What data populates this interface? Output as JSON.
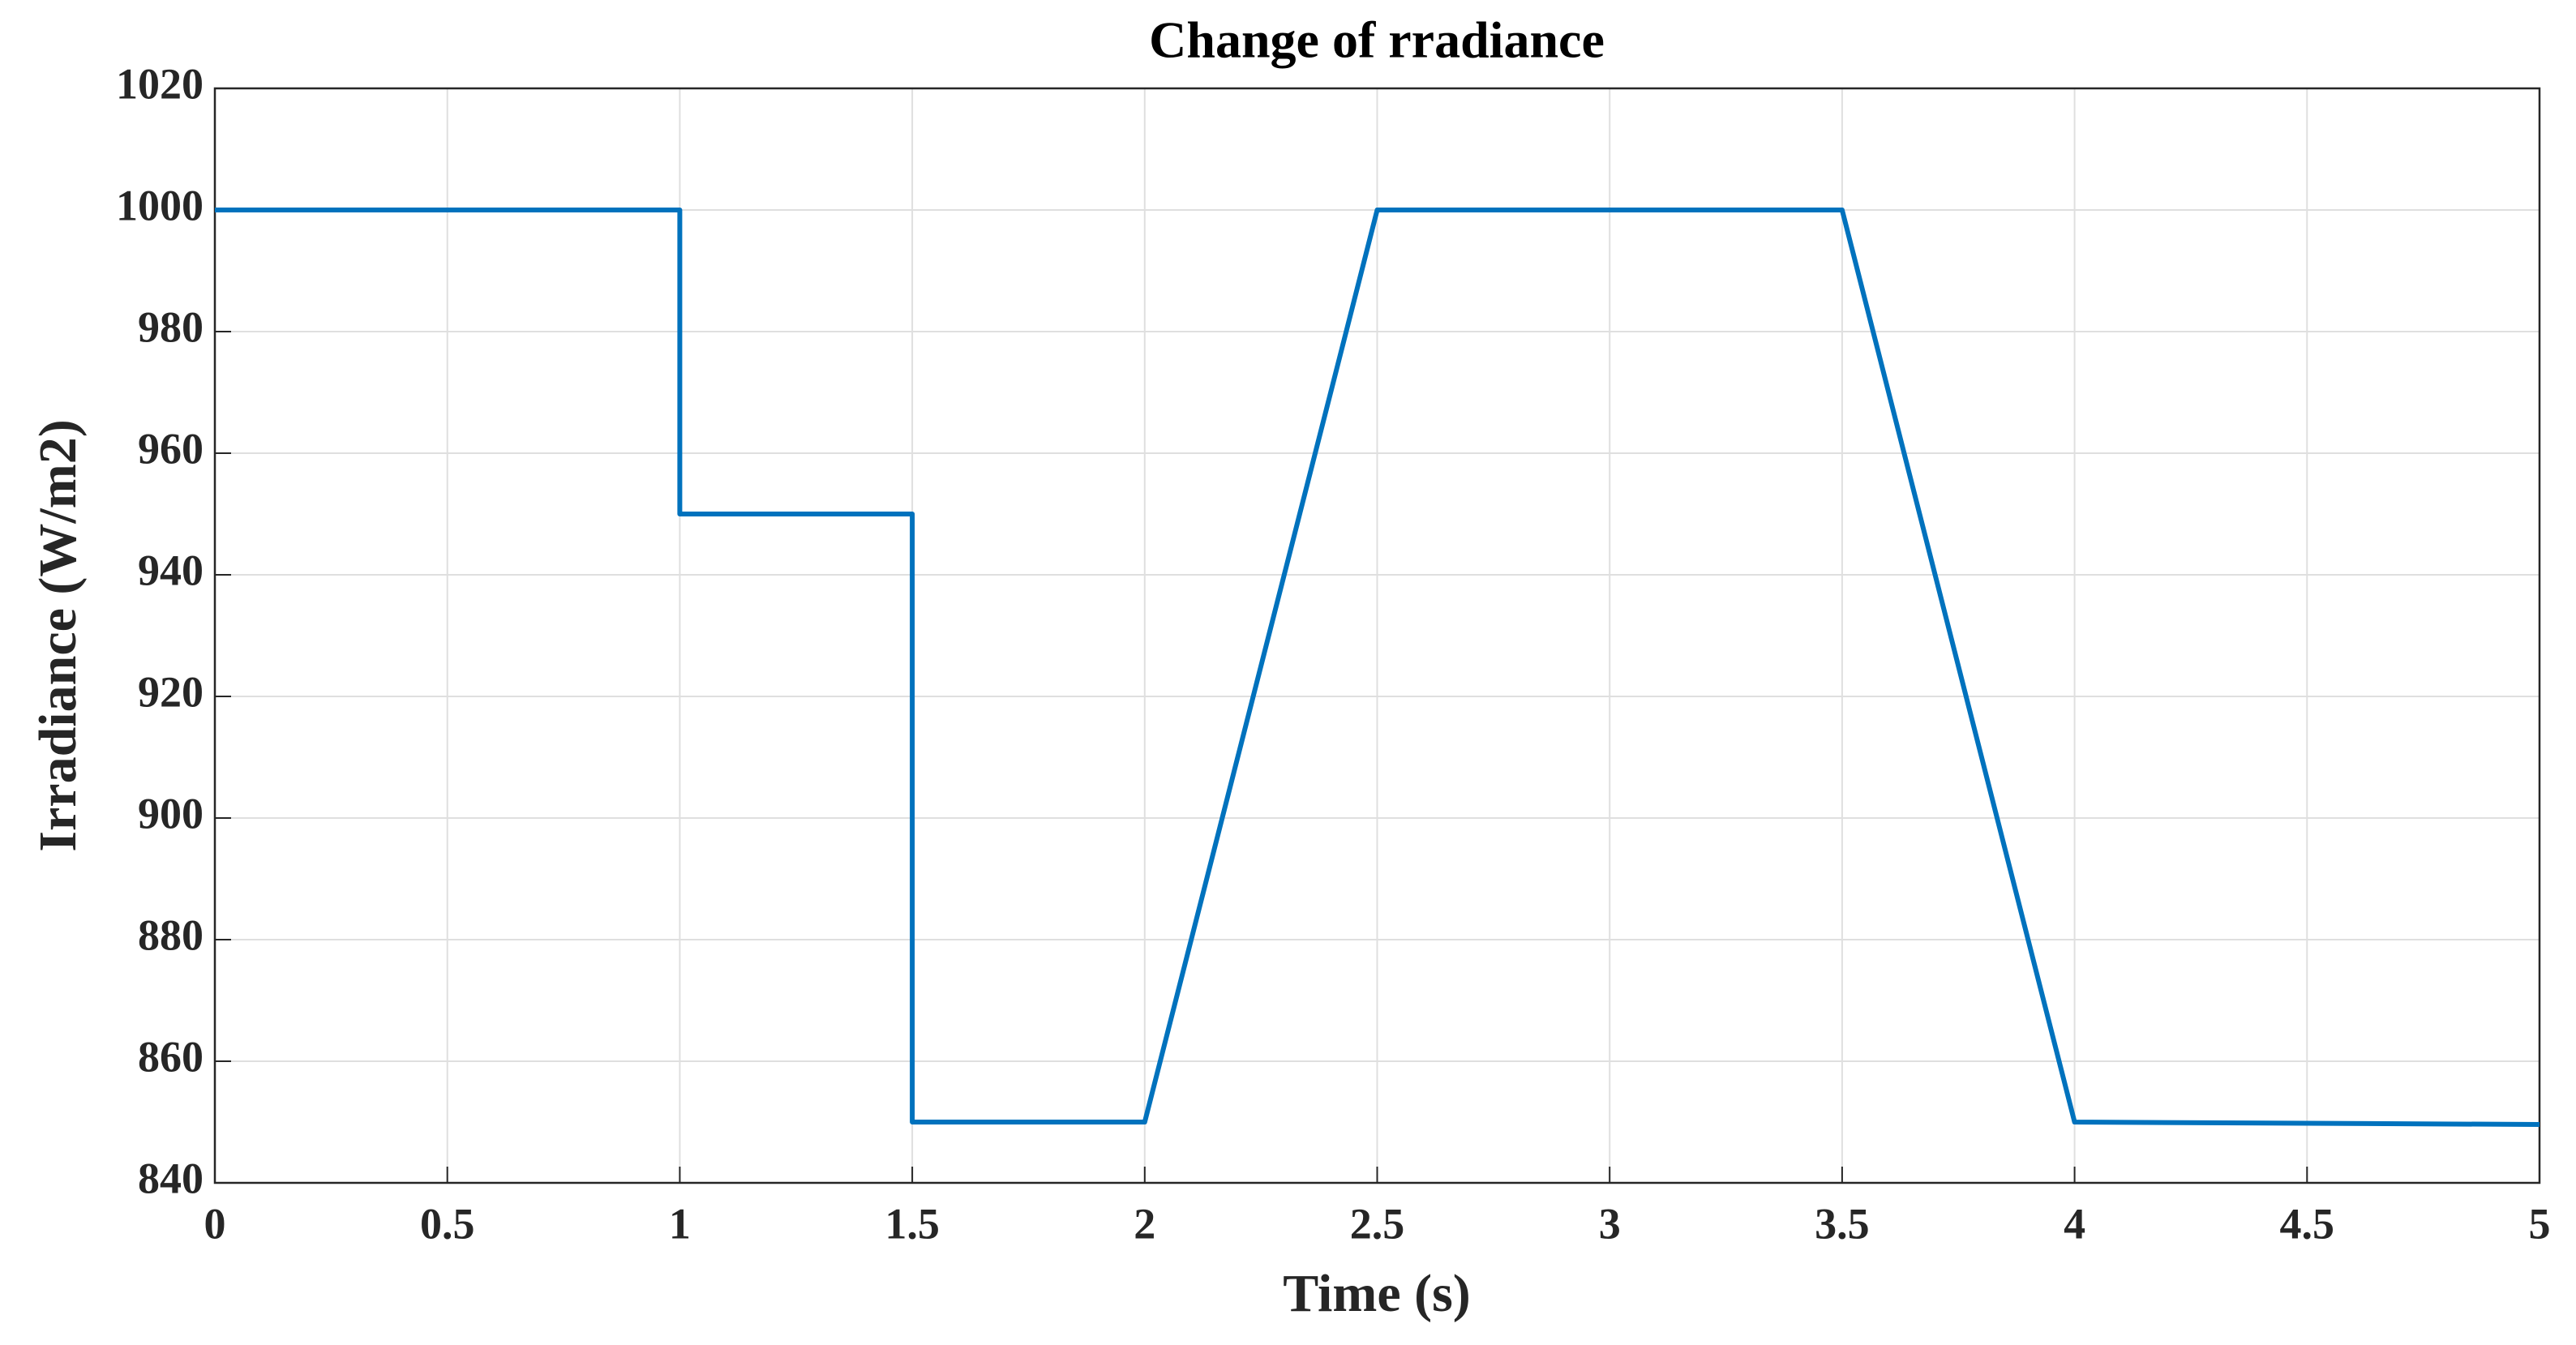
{
  "chart_data": {
    "type": "line",
    "title": "Change of rradiance",
    "x_label": "Time (s)",
    "y_label": "Irradiance (W/m2)",
    "x": [
      0,
      1,
      1,
      1.5,
      1.5,
      2,
      2.5,
      3.5,
      4,
      5
    ],
    "values": [
      1000,
      1000,
      950,
      950,
      850,
      850,
      1000,
      1000,
      850,
      849.6
    ],
    "color": "#0072bd",
    "xlim": [
      0,
      5
    ],
    "xticks": [
      0,
      0.5,
      1,
      1.5,
      2,
      2.5,
      3,
      3.5,
      4,
      4.5,
      5
    ],
    "ylim": [
      840,
      1020
    ],
    "yticks": [
      840,
      860,
      880,
      900,
      920,
      940,
      960,
      980,
      1000,
      1020
    ],
    "grid": true
  }
}
